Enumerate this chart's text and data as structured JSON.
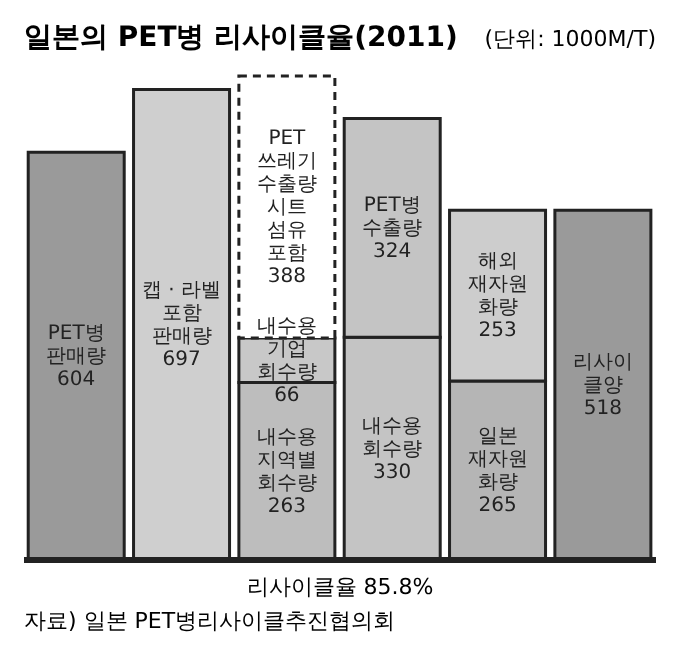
{
  "chart_data": {
    "type": "bar",
    "title": "일본의 PET병 리사이클율(2011)",
    "stacked": true,
    "categories": [
      null,
      null,
      null,
      null,
      null,
      null
    ],
    "series": [
      {
        "colors": [
          "#9a9a9a",
          "#cfcfcf",
          "#bdbdbd",
          "#c4c4c4",
          "#b5b5b5",
          "#9a9a9a"
        ],
        "values": [
          604,
          697,
          263,
          330,
          265,
          518
        ],
        "value_labels": [
          "PET병\n판매량\n604",
          "캡 · 라벨\n포함\n판매량\n697",
          "내수용\n지역별\n회수량\n263",
          "내수용\n회수량\n330",
          "일본\n재자원\n화량\n265",
          "리사이\n클양\n518"
        ]
      },
      {
        "colors": [
          null,
          null,
          "#c8c8c8",
          "#c4c4c4",
          "#cdcdcd",
          null
        ],
        "values": [
          null,
          null,
          66,
          324,
          253,
          null
        ],
        "value_labels": [
          null,
          null,
          "내수용\n기업\n회수량\n66",
          "PET병\n수출량\n324",
          "해외\n재자원\n화량\n253",
          null
        ]
      },
      {
        "colors": [
          null,
          null,
          "#ffffff",
          null,
          null,
          null
        ],
        "line_style": "dashed",
        "values": [
          null,
          null,
          388,
          null,
          null,
          null
        ],
        "value_labels": [
          null,
          null,
          "PET\n쓰레기\n수출량\n시트\n섬유\n포함\n388",
          null,
          null,
          null
        ]
      }
    ],
    "annotations": [
      "(단위: 1000M/T)",
      "리사이클율 85.8%",
      "자료) 일본 PET병리사이클추진협의회"
    ]
  }
}
